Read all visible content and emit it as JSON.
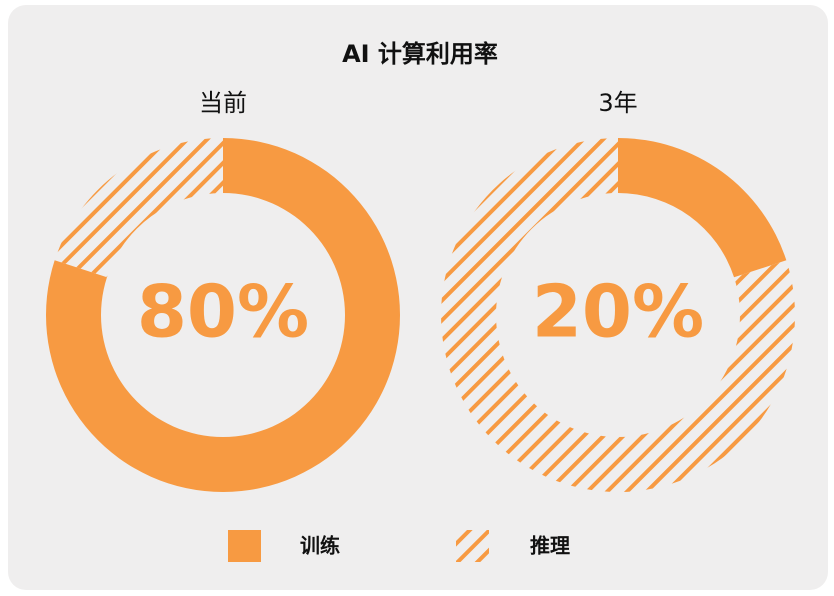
{
  "title": "AI 计算利用率",
  "chart_data": [
    {
      "type": "pie",
      "title": "当前",
      "categories": [
        "训练",
        "推理"
      ],
      "values": [
        80,
        20
      ],
      "value_labels": [
        "80%",
        null
      ],
      "colors": [
        "#f79a42",
        "#f79a42"
      ],
      "hatch": [
        false,
        true
      ]
    },
    {
      "type": "pie",
      "title": "3年",
      "categories": [
        "训练",
        "推理"
      ],
      "values": [
        20,
        80
      ],
      "value_labels": [
        "20%",
        null
      ],
      "colors": [
        "#f79a42",
        "#f79a42"
      ],
      "hatch": [
        false,
        true
      ]
    }
  ]
}
